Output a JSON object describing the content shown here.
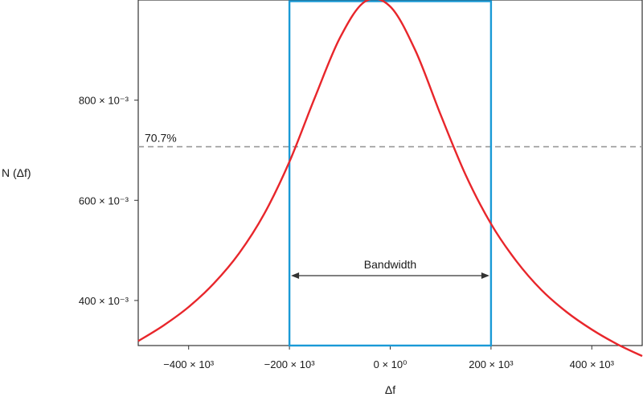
{
  "chart_data": {
    "type": "line",
    "xlabel": "Δf",
    "ylabel": "N (Δf)",
    "xlim": [
      -500000,
      500000
    ],
    "ylim": [
      0.31,
      1.0
    ],
    "x_ticks": [
      {
        "value": -400000,
        "label": "−400 × 10³"
      },
      {
        "value": -200000,
        "label": "−200 × 10³"
      },
      {
        "value": 0,
        "label": "0 × 10⁰"
      },
      {
        "value": 200000,
        "label": "200 × 10³"
      },
      {
        "value": 400000,
        "label": "400 × 10³"
      }
    ],
    "y_ticks": [
      {
        "value": 0.4,
        "label": "400 × 10⁻³"
      },
      {
        "value": 0.6,
        "label": "600 × 10⁻³"
      },
      {
        "value": 0.8,
        "label": "800 × 10⁻³"
      }
    ],
    "series": [
      {
        "color": "#e8262b",
        "x": [
          -500000,
          -450000,
          -400000,
          -350000,
          -300000,
          -250000,
          -200000,
          -150000,
          -100000,
          -50000,
          0,
          50000,
          100000,
          150000,
          200000,
          250000,
          300000,
          350000,
          400000,
          450000,
          500000
        ],
        "y": [
          0.319,
          0.35,
          0.387,
          0.434,
          0.494,
          0.573,
          0.677,
          0.804,
          0.924,
          0.997,
          0.987,
          0.899,
          0.771,
          0.65,
          0.553,
          0.479,
          0.421,
          0.377,
          0.342,
          0.313,
          0.289
        ]
      }
    ],
    "threshold": {
      "value": 0.707,
      "label": "70.7%",
      "style": "dashed",
      "color": "#999999"
    },
    "band": {
      "x_start": -200000,
      "x_end": 200000,
      "label": "Bandwidth",
      "color": "#1a9ad6"
    },
    "grid": false
  }
}
